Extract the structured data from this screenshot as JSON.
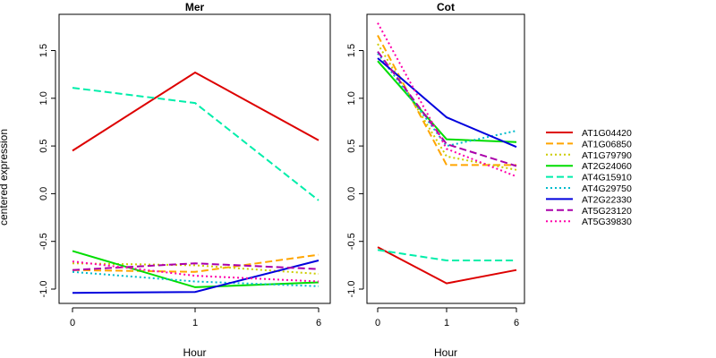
{
  "chart_data": {
    "type": "line",
    "ylabel": "centered expression",
    "xlabel": "Hour",
    "x_ticks": [
      "0",
      "1",
      "6"
    ],
    "y_ticks": [
      -1.0,
      -0.5,
      0.0,
      0.5,
      1.0,
      1.5
    ],
    "ylim": [
      -1.15,
      1.88
    ],
    "legend_position": "right",
    "legend": [
      {
        "name": "AT1G04420",
        "color": "#dd0000",
        "dash": "solid"
      },
      {
        "name": "AT1G06850",
        "color": "#ffa500",
        "dash": "dashed"
      },
      {
        "name": "AT1G79790",
        "color": "#cccc00",
        "dash": "dotted"
      },
      {
        "name": "AT2G24060",
        "color": "#00dd00",
        "dash": "solid"
      },
      {
        "name": "AT4G15910",
        "color": "#00eeaa",
        "dash": "dashed"
      },
      {
        "name": "AT4G29750",
        "color": "#00bbcc",
        "dash": "dotted"
      },
      {
        "name": "AT2G22330",
        "color": "#0000dd",
        "dash": "solid"
      },
      {
        "name": "AT5G23120",
        "color": "#aa00aa",
        "dash": "dashed"
      },
      {
        "name": "AT5G39830",
        "color": "#ff00aa",
        "dash": "dotted"
      }
    ],
    "panels": [
      {
        "title": "Mer",
        "series": [
          {
            "name": "AT1G04420",
            "values": [
              0.45,
              1.27,
              0.56
            ]
          },
          {
            "name": "AT1G06850",
            "values": [
              -0.8,
              -0.82,
              -0.64
            ]
          },
          {
            "name": "AT1G79790",
            "values": [
              -0.73,
              -0.75,
              -0.84
            ]
          },
          {
            "name": "AT2G24060",
            "values": [
              -0.6,
              -0.98,
              -0.93
            ]
          },
          {
            "name": "AT4G15910",
            "values": [
              1.11,
              0.95,
              -0.07
            ]
          },
          {
            "name": "AT4G29750",
            "values": [
              -0.82,
              -0.92,
              -0.97
            ]
          },
          {
            "name": "AT2G22330",
            "values": [
              -1.04,
              -1.03,
              -0.7
            ]
          },
          {
            "name": "AT5G23120",
            "values": [
              -0.8,
              -0.73,
              -0.79
            ]
          },
          {
            "name": "AT5G39830",
            "values": [
              -0.71,
              -0.86,
              -0.92
            ]
          }
        ]
      },
      {
        "title": "Cot",
        "series": [
          {
            "name": "AT1G04420",
            "values": [
              -0.56,
              -0.94,
              -0.8
            ]
          },
          {
            "name": "AT1G06850",
            "values": [
              1.66,
              0.3,
              0.3
            ]
          },
          {
            "name": "AT1G79790",
            "values": [
              1.57,
              0.39,
              0.25
            ]
          },
          {
            "name": "AT2G24060",
            "values": [
              1.39,
              0.57,
              0.54
            ]
          },
          {
            "name": "AT4G15910",
            "values": [
              -0.59,
              -0.7,
              -0.7
            ]
          },
          {
            "name": "AT4G29750",
            "values": [
              1.47,
              0.5,
              0.66
            ]
          },
          {
            "name": "AT2G22330",
            "values": [
              1.42,
              0.8,
              0.49
            ]
          },
          {
            "name": "AT5G23120",
            "values": [
              1.49,
              0.52,
              0.29
            ]
          },
          {
            "name": "AT5G39830",
            "values": [
              1.79,
              0.47,
              0.18
            ]
          }
        ]
      }
    ]
  }
}
